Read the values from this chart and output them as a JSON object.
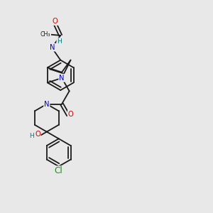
{
  "background_color": "#e8e8e8",
  "atom_colors": {
    "C": "#1a1a1a",
    "N": "#0000cc",
    "O": "#cc0000",
    "H": "#008080",
    "Cl": "#228b22"
  },
  "bond_lw": 1.3,
  "font_size": 7.2,
  "figsize": [
    3.0,
    3.0
  ],
  "dpi": 100
}
